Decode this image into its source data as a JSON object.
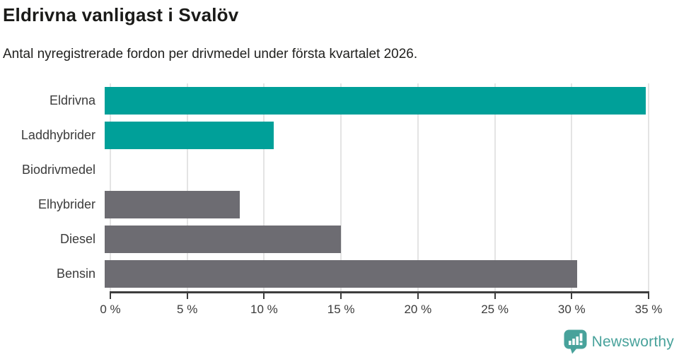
{
  "header": {
    "title": "Eldrivna vanligast i Svalöv",
    "subtitle": "Antal nyregistrerade fordon per drivmedel under första kvartalet 2026."
  },
  "chart_data": {
    "type": "bar",
    "orientation": "horizontal",
    "title": "Eldrivna vanligast i Svalöv",
    "subtitle": "Antal nyregistrerade fordon per drivmedel under första kvartalet 2026.",
    "categories": [
      "Eldrivna",
      "Laddhybrider",
      "Biodrivmedel",
      "Elhybrider",
      "Diesel",
      "Bensin"
    ],
    "values": [
      34.8,
      10.9,
      0,
      8.7,
      15.2,
      30.4
    ],
    "unit": "%",
    "bar_colors": [
      "#00a099",
      "#00a099",
      "#6d6c72",
      "#6d6c72",
      "#6d6c72",
      "#6d6c72"
    ],
    "highlight_color": "#00a099",
    "default_color": "#6d6c72",
    "xlim": [
      0,
      35
    ],
    "grid": true,
    "legend": false,
    "ticks": [
      {
        "value": 0,
        "label": "0 %"
      },
      {
        "value": 5,
        "label": "5 %"
      },
      {
        "value": 10,
        "label": "10 %"
      },
      {
        "value": 15,
        "label": "15 %"
      },
      {
        "value": 20,
        "label": "20 %"
      },
      {
        "value": 25,
        "label": "25 %"
      },
      {
        "value": 30,
        "label": "30 %"
      },
      {
        "value": 35,
        "label": "35 %"
      }
    ]
  },
  "footer": {
    "brand": "Newsworthy",
    "logo_icon": "newsworthy-chart-bubble-icon",
    "brand_color": "#48a29b"
  }
}
